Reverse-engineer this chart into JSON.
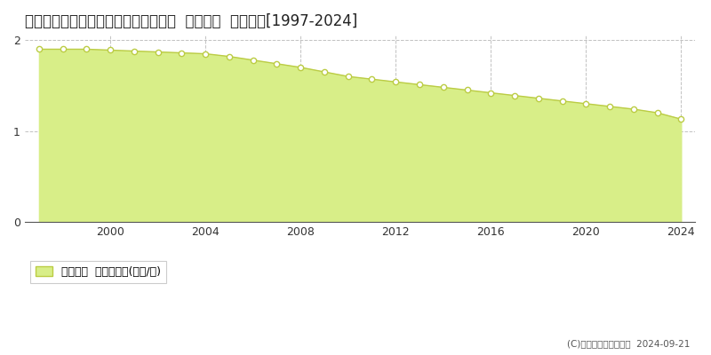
{
  "title": "北海道網走郡津別町字豊永２８番６７  基準地価  地価推移[1997-2024]",
  "years": [
    1997,
    1998,
    1999,
    2000,
    2001,
    2002,
    2003,
    2004,
    2005,
    2006,
    2007,
    2008,
    2009,
    2010,
    2011,
    2012,
    2013,
    2014,
    2015,
    2016,
    2017,
    2018,
    2019,
    2020,
    2021,
    2022,
    2023,
    2024
  ],
  "values": [
    1.9,
    1.9,
    1.9,
    1.89,
    1.88,
    1.87,
    1.86,
    1.85,
    1.82,
    1.78,
    1.74,
    1.7,
    1.65,
    1.6,
    1.57,
    1.54,
    1.51,
    1.48,
    1.45,
    1.42,
    1.39,
    1.36,
    1.33,
    1.3,
    1.27,
    1.24,
    1.2,
    1.13
  ],
  "line_color": "#bbcc44",
  "fill_color": "#d8ee88",
  "marker_face_color": "#ffffff",
  "marker_edge_color": "#bbcc44",
  "grid_color": "#bbbbbb",
  "background_color": "#ffffff",
  "plot_bg_color": "#ffffff",
  "ylim": [
    0,
    2.05
  ],
  "yticks": [
    0,
    1,
    2
  ],
  "xticks": [
    2000,
    2004,
    2008,
    2012,
    2016,
    2020,
    2024
  ],
  "xlim_left": 1996.4,
  "xlim_right": 2024.6,
  "legend_label": "基準地価  平均坪単価(万円/坪)",
  "copyright_text": "(C)土地価格ドットコム  2024-09-21",
  "title_fontsize": 12,
  "tick_fontsize": 9,
  "legend_fontsize": 9
}
